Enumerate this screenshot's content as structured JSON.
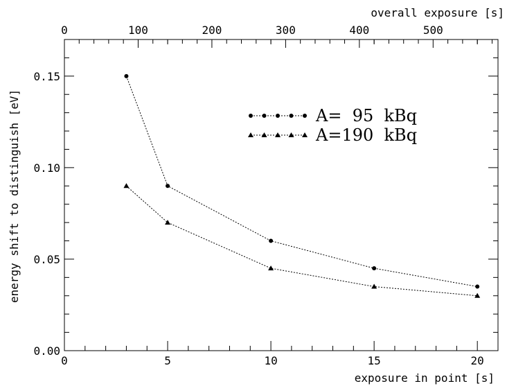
{
  "chart_data": {
    "type": "line",
    "xlabel": "exposure in point [s]",
    "x2label": "overall exposure [s]",
    "ylabel": "energy shift to distinguish [eV]",
    "xlim": [
      0,
      21
    ],
    "ylim": [
      0,
      0.17
    ],
    "x2lim": [
      0,
      588
    ],
    "xticks": [
      0,
      5,
      10,
      15,
      20
    ],
    "xtick_labels": [
      "0",
      "5",
      "10",
      "15",
      "20"
    ],
    "yticks": [
      0,
      0.05,
      0.1,
      0.15
    ],
    "ytick_labels": [
      "0.00",
      "0.05",
      "0.10",
      "0.15"
    ],
    "x2ticks": [
      0,
      100,
      200,
      300,
      400,
      500
    ],
    "x2tick_labels": [
      "0",
      "100",
      "200",
      "300",
      "400",
      "500"
    ],
    "legend_position": "upper-right",
    "grid": false,
    "series": [
      {
        "name": "A=  95  kBq",
        "marker": "circle",
        "x": [
          3,
          5,
          10,
          15,
          20
        ],
        "y": [
          0.15,
          0.09,
          0.06,
          0.045,
          0.035
        ]
      },
      {
        "name": "A=190  kBq",
        "marker": "triangle",
        "x": [
          3,
          5,
          10,
          15,
          20
        ],
        "y": [
          0.09,
          0.07,
          0.045,
          0.035,
          0.03
        ]
      }
    ]
  }
}
